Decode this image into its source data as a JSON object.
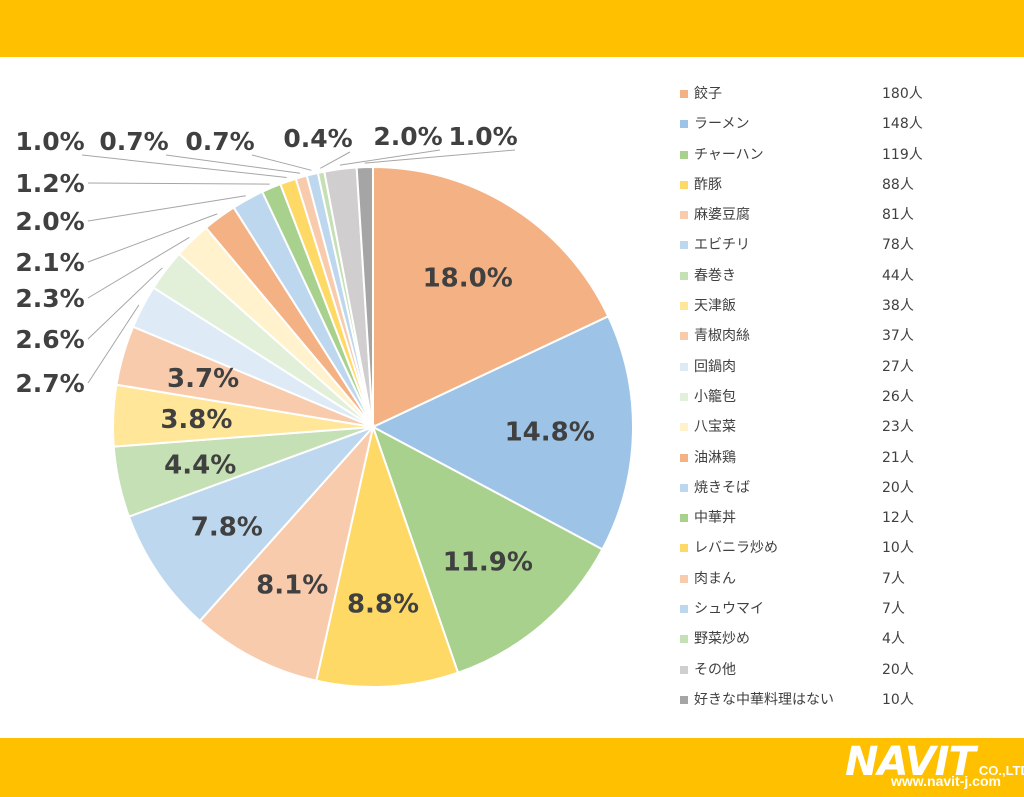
{
  "chart_data": {
    "type": "pie",
    "title": "",
    "slices": [
      {
        "label": "餃子",
        "count": "180人",
        "percent": 18.0,
        "percent_label": "18.0%",
        "color": "#F4B183"
      },
      {
        "label": "ラーメン",
        "count": "148人",
        "percent": 14.8,
        "percent_label": "14.8%",
        "color": "#9DC3E6"
      },
      {
        "label": "チャーハン",
        "count": "119人",
        "percent": 11.9,
        "percent_label": "11.9%",
        "color": "#A9D18E"
      },
      {
        "label": "酢豚",
        "count": "88人",
        "percent": 8.8,
        "percent_label": "8.8%",
        "color": "#FFD966"
      },
      {
        "label": "麻婆豆腐",
        "count": "81人",
        "percent": 8.1,
        "percent_label": "8.1%",
        "color": "#F8CBAD"
      },
      {
        "label": "エビチリ",
        "count": "78人",
        "percent": 7.8,
        "percent_label": "7.8%",
        "color": "#BDD7EE"
      },
      {
        "label": "春巻き",
        "count": "44人",
        "percent": 4.4,
        "percent_label": "4.4%",
        "color": "#C5E0B4"
      },
      {
        "label": "天津飯",
        "count": "38人",
        "percent": 3.8,
        "percent_label": "3.8%",
        "color": "#FFE699"
      },
      {
        "label": "青椒肉絲",
        "count": "37人",
        "percent": 3.7,
        "percent_label": "3.7%",
        "color": "#F8CBAD"
      },
      {
        "label": "回鍋肉",
        "count": "27人",
        "percent": 2.7,
        "percent_label": "2.7%",
        "color": "#DEEBF7"
      },
      {
        "label": "小籠包",
        "count": "26人",
        "percent": 2.6,
        "percent_label": "2.6%",
        "color": "#E2F0D9"
      },
      {
        "label": "八宝菜",
        "count": "23人",
        "percent": 2.3,
        "percent_label": "2.3%",
        "color": "#FFF2CC"
      },
      {
        "label": "油淋鶏",
        "count": "21人",
        "percent": 2.1,
        "percent_label": "2.1%",
        "color": "#F4B183"
      },
      {
        "label": "焼きそば",
        "count": "20人",
        "percent": 2.0,
        "percent_label": "2.0%",
        "color": "#BDD7EE"
      },
      {
        "label": "中華丼",
        "count": "12人",
        "percent": 1.2,
        "percent_label": "1.2%",
        "color": "#A9D18E"
      },
      {
        "label": "レバニラ炒め",
        "count": "10人",
        "percent": 1.0,
        "percent_label": "1.0%",
        "color": "#FFD966"
      },
      {
        "label": "肉まん",
        "count": "7人",
        "percent": 0.7,
        "percent_label": "0.7%",
        "color": "#F8CBAD"
      },
      {
        "label": "シュウマイ",
        "count": "7人",
        "percent": 0.7,
        "percent_label": "0.7%",
        "color": "#BDD7EE"
      },
      {
        "label": "野菜炒め",
        "count": "4人",
        "percent": 0.4,
        "percent_label": "0.4%",
        "color": "#C5E0B4"
      },
      {
        "label": "その他",
        "count": "20人",
        "percent": 2.0,
        "percent_label": "2.0%",
        "color": "#D0CECE"
      },
      {
        "label": "好きな中華料理はない",
        "count": "10人",
        "percent": 1.0,
        "percent_label": "1.0%",
        "color": "#A5A5A5"
      }
    ],
    "legend_position": "right"
  },
  "logo": {
    "main": "NAVIT",
    "suffix": "CO.,LTD.",
    "url": "www.navit-j.com"
  },
  "colors": {
    "band": "#FFC000",
    "label_text": "#404040",
    "leader_line": "#A6A6A6"
  }
}
